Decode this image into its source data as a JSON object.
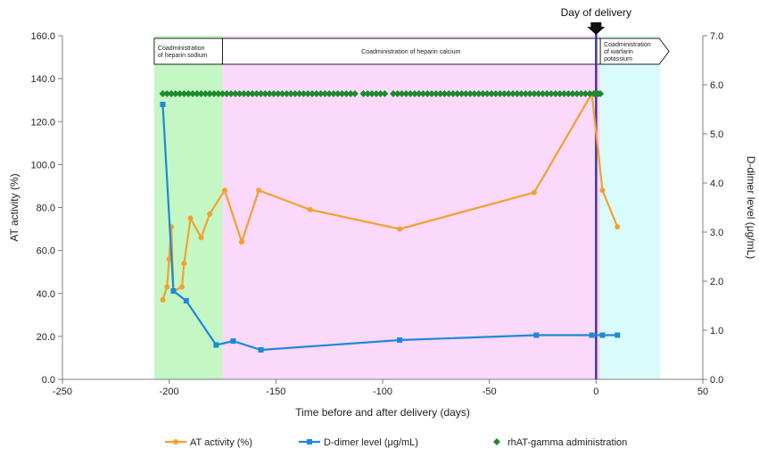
{
  "chart_data": {
    "type": "line",
    "xlabel": "Time before and after delivery (days)",
    "ylabel_left": "AT activity (%)",
    "ylabel_right": "D-dimer level (μg/mL)",
    "xlim": [
      -250,
      50
    ],
    "ylim_left": [
      0,
      160
    ],
    "ylim_right": [
      0,
      7
    ],
    "x_ticks": [
      "-250",
      "-200",
      "-150",
      "-100",
      "-50",
      "0",
      "50"
    ],
    "y_left_ticks": [
      "0.0",
      "20.0",
      "40.0",
      "60.0",
      "80.0",
      "100.0",
      "120.0",
      "140.0",
      "160.0"
    ],
    "y_right_ticks": [
      "0.0",
      "1.0",
      "2.0",
      "3.0",
      "4.0",
      "5.0",
      "6.0",
      "7.0"
    ],
    "event_label": "Day of delivery",
    "event_x": 0,
    "phases": [
      {
        "label": "Coadministration of heparin sodium",
        "lines": [
          "Coadministration",
          "of heparin sodium"
        ],
        "start": -207,
        "end": -175,
        "color": "#c4f7c4"
      },
      {
        "label": "Coadministration of heparin calcium",
        "lines": [
          "Coadministration of heparin calcium"
        ],
        "start": -175,
        "end": 2,
        "color": "#fbd9fb"
      },
      {
        "label": "Coadministration of warfarin potassium",
        "lines": [
          "Coadministration",
          "of warfarin",
          "potassium"
        ],
        "start": 2,
        "end": 30,
        "color": "#d9fbfb"
      }
    ],
    "series": [
      {
        "name": "AT activity (%)",
        "axis": "left",
        "color": "#f2a12e",
        "marker": "circle",
        "x": [
          -203,
          -201,
          -200,
          -199,
          -198,
          -194,
          -193,
          -190,
          -185,
          -181,
          -174,
          -166,
          -158,
          -134,
          -92,
          -29,
          -2,
          3,
          10
        ],
        "y": [
          37,
          43,
          56,
          71,
          41,
          43,
          54,
          75,
          66,
          77,
          88,
          64,
          88,
          79,
          70,
          87,
          133,
          88,
          71
        ]
      },
      {
        "name": "D-dimer level (μg/mL)",
        "axis": "right",
        "color": "#1f88d8",
        "marker": "square",
        "x": [
          -203,
          -198,
          -192,
          -178,
          -170,
          -157,
          -92,
          -28,
          -2,
          3,
          10
        ],
        "y": [
          5.6,
          1.8,
          1.6,
          0.7,
          0.78,
          0.6,
          0.8,
          0.9,
          0.9,
          0.9,
          0.9
        ]
      },
      {
        "name": "rhAT-gamma administration",
        "axis": "left",
        "color": "#1e8a2e",
        "marker": "diamond",
        "x": [
          -203,
          -201,
          -199,
          -197,
          -195,
          -193,
          -191,
          -189,
          -187,
          -185,
          -183,
          -181,
          -179,
          -177,
          -175,
          -173,
          -171,
          -169,
          -167,
          -165,
          -163,
          -161,
          -159,
          -157,
          -155,
          -153,
          -151,
          -149,
          -147,
          -145,
          -143,
          -141,
          -139,
          -137,
          -135,
          -133,
          -131,
          -129,
          -127,
          -125,
          -123,
          -121,
          -119,
          -117,
          -115,
          -113,
          -109,
          -107,
          -105,
          -103,
          -101,
          -99,
          -95,
          -93,
          -91,
          -89,
          -87,
          -85,
          -83,
          -81,
          -79,
          -77,
          -75,
          -73,
          -71,
          -69,
          -67,
          -65,
          -63,
          -61,
          -59,
          -57,
          -55,
          -53,
          -51,
          -49,
          -47,
          -45,
          -43,
          -41,
          -39,
          -37,
          -35,
          -33,
          -31,
          -29,
          -27,
          -25,
          -23,
          -21,
          -19,
          -17,
          -15,
          -13,
          -11,
          -9,
          -7,
          -5,
          -3,
          -1,
          0,
          1,
          2
        ],
        "y_value": 133
      }
    ],
    "legend": [
      "AT activity (%)",
      "D-dimer level (μg/mL)",
      "rhAT-gamma administration"
    ],
    "legend_position": "bottom"
  }
}
